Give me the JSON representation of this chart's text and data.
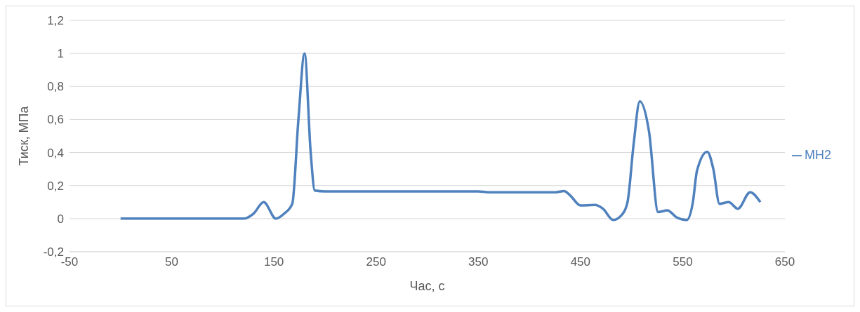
{
  "chart_data": {
    "type": "line",
    "xlabel": "Час, с",
    "ylabel": "Тиск, МПа",
    "xlim": [
      -50,
      650
    ],
    "xticks": [
      -50,
      50,
      150,
      250,
      350,
      450,
      550,
      650
    ],
    "ylim": [
      -0.2,
      1.2
    ],
    "yticks": [
      {
        "value": -0.2,
        "label": "-0,2"
      },
      {
        "value": 0,
        "label": "0"
      },
      {
        "value": 0.2,
        "label": "0,2"
      },
      {
        "value": 0.4,
        "label": "0,4"
      },
      {
        "value": 0.6,
        "label": "0,6"
      },
      {
        "value": 0.8,
        "label": "0,8"
      },
      {
        "value": 1,
        "label": "1"
      },
      {
        "value": 1.2,
        "label": "1,2"
      }
    ],
    "grid": "y",
    "legend": "right",
    "marker": "none",
    "line_style": "solid",
    "series": [
      {
        "name": "МН2",
        "color": "#4f81bd",
        "x": [
          0,
          20,
          40,
          60,
          80,
          100,
          110,
          120,
          130,
          140,
          152,
          160,
          168,
          174,
          180,
          186,
          190,
          200,
          250,
          300,
          350,
          360,
          400,
          426,
          434,
          440,
          450,
          464,
          472,
          482,
          490,
          496,
          502,
          508,
          517,
          526,
          535,
          544,
          554,
          560,
          564,
          574,
          580,
          586,
          595,
          604,
          616,
          626
        ],
        "values": [
          0,
          0,
          0,
          0,
          0,
          0,
          0,
          0,
          0.03,
          0.1,
          0,
          0.03,
          0.09,
          0.6,
          1,
          0.4,
          0.17,
          0.165,
          0.165,
          0.165,
          0.165,
          0.16,
          0.16,
          0.16,
          0.167,
          0.14,
          0.08,
          0.083,
          0.06,
          -0.008,
          0.02,
          0.1,
          0.45,
          0.71,
          0.53,
          0.04,
          0.05,
          0.008,
          -0.008,
          0.1,
          0.29,
          0.405,
          0.3,
          0.09,
          0.1,
          0.06,
          0.16,
          0.1
        ]
      }
    ]
  }
}
